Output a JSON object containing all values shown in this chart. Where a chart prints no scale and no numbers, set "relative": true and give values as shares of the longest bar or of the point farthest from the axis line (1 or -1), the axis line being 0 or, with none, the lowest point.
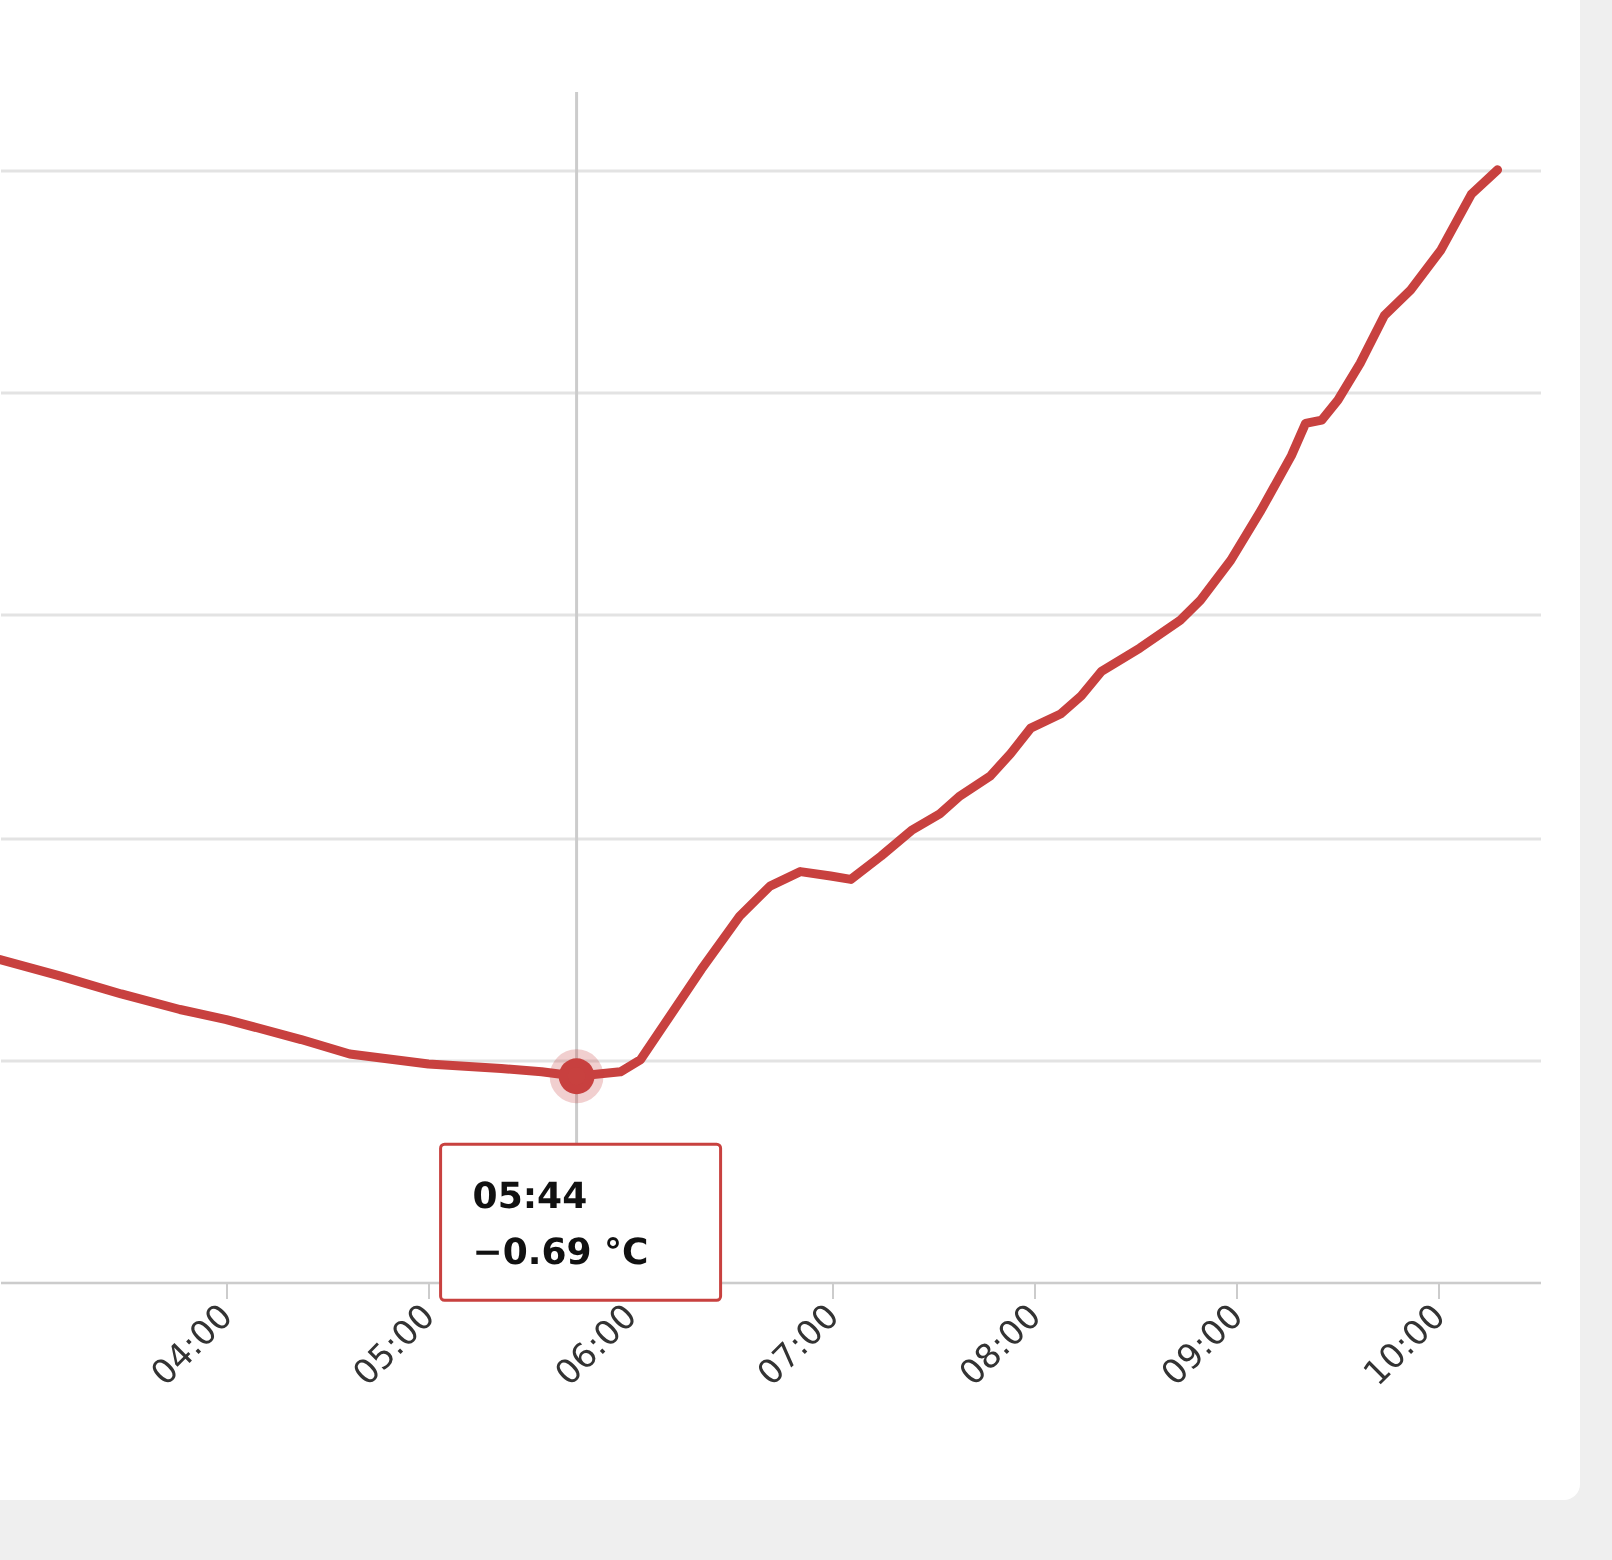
{
  "chart_data": {
    "type": "line",
    "relative": true,
    "grid": "y",
    "x": [
      2.88,
      3.18,
      3.48,
      3.77,
      4.0,
      4.37,
      4.61,
      5.0,
      5.36,
      5.56,
      5.733,
      5.95,
      6.05,
      6.15,
      6.35,
      6.54,
      6.69,
      6.84,
      6.99,
      7.09,
      7.24,
      7.39,
      7.53,
      7.63,
      7.78,
      7.88,
      7.98,
      8.13,
      8.23,
      8.33,
      8.52,
      8.72,
      8.82,
      8.97,
      9.12,
      9.27,
      9.34,
      9.42,
      9.5,
      9.61,
      9.73,
      9.86,
      10.01,
      10.16,
      10.29
    ],
    "series": [
      {
        "color": "#c8413f",
        "values": [
          0.29,
          0.275,
          0.259,
          0.245,
          0.236,
          0.218,
          0.205,
          0.196,
          0.192,
          0.189,
          0.185,
          0.189,
          0.2,
          0.227,
          0.281,
          0.329,
          0.356,
          0.369,
          0.365,
          0.362,
          0.383,
          0.406,
          0.421,
          0.437,
          0.455,
          0.475,
          0.498,
          0.511,
          0.527,
          0.549,
          0.57,
          0.595,
          0.613,
          0.649,
          0.694,
          0.743,
          0.772,
          0.775,
          0.793,
          0.826,
          0.869,
          0.892,
          0.928,
          0.978,
          1
        ]
      }
    ],
    "xlim": [
      2.88,
      10.5
    ],
    "xticks": [
      {
        "value": 4,
        "label": "04:00"
      },
      {
        "value": 5,
        "label": "05:00"
      },
      {
        "value": 6,
        "label": "06:00"
      },
      {
        "value": 7,
        "label": "07:00"
      },
      {
        "value": 8,
        "label": "08:00"
      },
      {
        "value": 9,
        "label": "09:00"
      },
      {
        "value": 10,
        "label": "10:00"
      }
    ],
    "ref_lines": [
      {
        "axis": "x",
        "value": 5.733,
        "label": null,
        "color": "#cccccc"
      }
    ],
    "annotations": [
      {
        "text": "05:44\n−0.69 °C",
        "x": 5.733,
        "y": 0.185
      }
    ]
  }
}
